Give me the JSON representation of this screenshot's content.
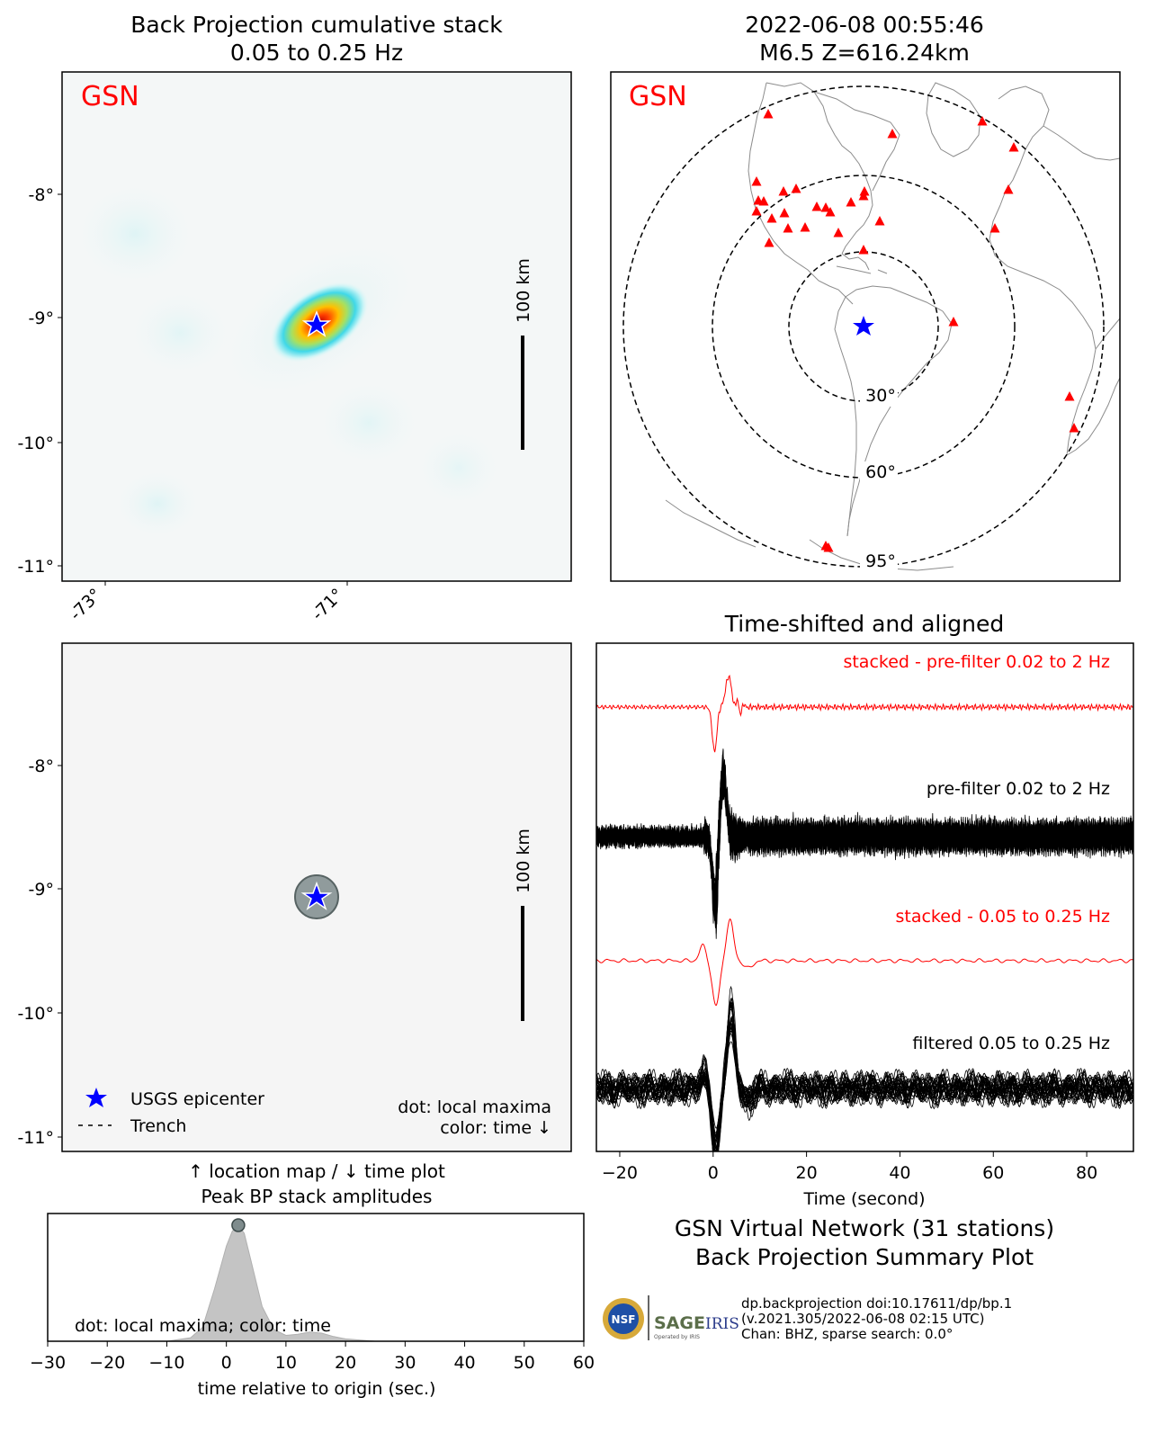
{
  "colors": {
    "red": "#ff0000",
    "blue": "#0000ff",
    "gray_dot": "#7f8c8d",
    "fill_gray": "#c4c4c4",
    "bg": "#f5f5f5"
  },
  "bp_panel": {
    "title_line1": "Back Projection cumulative stack",
    "title_line2": "0.05 to 0.25 Hz",
    "network_label": "GSN",
    "scale_label": "100 km",
    "y_ticks": [
      "-8°",
      "-9°",
      "-10°",
      "-11°"
    ],
    "x_ticks": [
      "-73°",
      "-71°"
    ]
  },
  "map_panel": {
    "title_line1": "2022-06-08 00:55:46",
    "title_line2": "M6.5 Z=616.24km",
    "network_label": "GSN",
    "ring_labels": [
      "30°",
      "60°",
      "95°"
    ],
    "station_marker": "red-triangle",
    "epicenter_marker": "blue-star"
  },
  "location_panel": {
    "scale_label": "100 km",
    "y_ticks": [
      "-8°",
      "-9°",
      "-10°",
      "-11°"
    ],
    "legend_epicenter": "USGS epicenter",
    "legend_trench": "Trench",
    "note_line1": "dot: local maxima",
    "note_line2": "color: time ↓",
    "caption_line1": "↑ location map / ↓ time plot",
    "caption_line2": "Peak BP stack amplitudes"
  },
  "waveform_panel": {
    "title": "Time-shifted and aligned",
    "label_stacked_broad": "stacked - pre-filter 0.02 to 2 Hz",
    "label_prefilter": "pre-filter 0.02 to 2 Hz",
    "label_stacked_band": "stacked - 0.05 to 0.25 Hz",
    "label_filtered": "filtered 0.05 to 0.25 Hz",
    "xlabel": "Time (second)"
  },
  "footer": {
    "title_line1": "GSN Virtual Network (31 stations)",
    "title_line2": "Back Projection Summary Plot",
    "info_line1": "dp.backprojection doi:10.17611/dp/bp.1",
    "info_line2": "(v.2021.305/2022-06-08 02:15 UTC)",
    "info_line3": "Chan: BHZ, sparse search: 0.0°",
    "logo_nsf": "NSF",
    "logo_sage": "SAGE",
    "logo_iris": "IRIS",
    "logo_sage_sub": "Operated by IRIS"
  },
  "time_panel": {
    "note": "dot: local maxima; color: time",
    "xlabel": "time relative to origin (sec.)"
  },
  "chart_data": [
    {
      "type": "heatmap",
      "title": "Back Projection cumulative stack 0.05 to 0.25 Hz",
      "ylim": [
        -11.1,
        -7.0
      ],
      "y_ticks": [
        -8,
        -9,
        -10,
        -11
      ],
      "x_ticks": [
        -73,
        -71
      ],
      "peak": {
        "lon": -71.1,
        "lat": -9.1
      },
      "epicenter": {
        "lon": -71.1,
        "lat": -9.1
      }
    },
    {
      "type": "scatter",
      "title": "Peak BP stack amplitudes (location)",
      "points": [
        {
          "lon": -71.1,
          "lat": -9.1
        }
      ],
      "epicenter": {
        "lon": -71.1,
        "lat": -9.1
      }
    },
    {
      "type": "line",
      "title": "Time-shifted and aligned",
      "xlabel": "Time (second)",
      "xlim": [
        -25,
        90
      ],
      "x_ticks": [
        -20,
        0,
        20,
        40,
        60,
        80
      ],
      "series": [
        {
          "name": "stacked - pre-filter 0.02 to 2 Hz"
        },
        {
          "name": "pre-filter 0.02 to 2 Hz"
        },
        {
          "name": "stacked - 0.05 to 0.25 Hz"
        },
        {
          "name": "filtered 0.05 to 0.25 Hz"
        }
      ]
    },
    {
      "type": "area",
      "title": "Peak BP stack amplitudes (time)",
      "xlabel": "time relative to origin (sec.)",
      "xlim": [
        -30,
        60
      ],
      "x_ticks": [
        -30,
        -20,
        -10,
        0,
        10,
        20,
        30,
        40,
        50,
        60
      ],
      "x": [
        -30,
        -10,
        -6,
        -4,
        -2,
        0,
        1,
        2,
        3,
        4,
        6,
        8,
        10,
        12,
        14,
        16,
        18,
        20,
        25,
        60
      ],
      "values": [
        0,
        0,
        0.03,
        0.12,
        0.45,
        0.82,
        0.95,
        1.0,
        0.93,
        0.72,
        0.3,
        0.1,
        0.05,
        0.06,
        0.08,
        0.07,
        0.04,
        0.02,
        0,
        0
      ],
      "local_maxima": [
        {
          "x": 2,
          "y": 1.0
        }
      ]
    }
  ]
}
